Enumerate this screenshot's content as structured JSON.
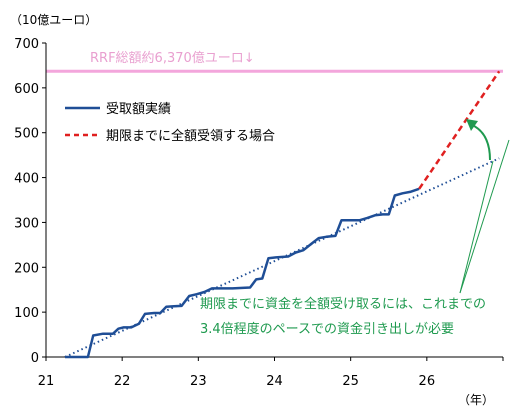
{
  "chart_data": {
    "type": "line",
    "y_unit_label": "（10億ユーロ）",
    "x_unit_label": "（年）",
    "xlim": [
      21,
      27
    ],
    "ylim": [
      0,
      700
    ],
    "x_ticks": [
      "21",
      "22",
      "23",
      "24",
      "25",
      "26"
    ],
    "y_ticks": [
      "0",
      "100",
      "200",
      "300",
      "400",
      "500",
      "600",
      "700"
    ],
    "rrf_total": {
      "label": "RRF総額約6,370億ユーロ↓",
      "value": 637,
      "color": "#f3a6dc"
    },
    "legend": [
      {
        "label": "受取額実績",
        "color": "#1f4e96",
        "style": "solid"
      },
      {
        "label": "期限までに全額受領する場合",
        "color": "#e02020",
        "style": "dashed"
      }
    ],
    "series": [
      {
        "name": "受取額実績",
        "color": "#1f4e96",
        "style": "solid",
        "points": [
          [
            21.25,
            0
          ],
          [
            21.55,
            0
          ],
          [
            21.62,
            48
          ],
          [
            21.75,
            52
          ],
          [
            21.88,
            52
          ],
          [
            21.95,
            63
          ],
          [
            22.02,
            66
          ],
          [
            22.12,
            66
          ],
          [
            22.22,
            74
          ],
          [
            22.3,
            96
          ],
          [
            22.42,
            98
          ],
          [
            22.5,
            98
          ],
          [
            22.58,
            112
          ],
          [
            22.68,
            113
          ],
          [
            22.78,
            114
          ],
          [
            22.88,
            136
          ],
          [
            22.98,
            140
          ],
          [
            23.08,
            145
          ],
          [
            23.18,
            153
          ],
          [
            23.3,
            153
          ],
          [
            23.45,
            153
          ],
          [
            23.58,
            154
          ],
          [
            23.68,
            155
          ],
          [
            23.76,
            173
          ],
          [
            23.84,
            175
          ],
          [
            23.92,
            220
          ],
          [
            24.02,
            222
          ],
          [
            24.18,
            224
          ],
          [
            24.28,
            233
          ],
          [
            24.38,
            238
          ],
          [
            24.48,
            252
          ],
          [
            24.58,
            265
          ],
          [
            24.68,
            268
          ],
          [
            24.8,
            270
          ],
          [
            24.88,
            305
          ],
          [
            24.98,
            305
          ],
          [
            25.12,
            305
          ],
          [
            25.22,
            310
          ],
          [
            25.32,
            316
          ],
          [
            25.42,
            318
          ],
          [
            25.5,
            318
          ],
          [
            25.58,
            360
          ],
          [
            25.68,
            365
          ],
          [
            25.78,
            368
          ],
          [
            25.9,
            375
          ]
        ]
      },
      {
        "name": "期限までに全額受領する場合",
        "color": "#e02020",
        "style": "dashed",
        "points": [
          [
            25.9,
            375
          ],
          [
            26.95,
            637
          ]
        ]
      },
      {
        "name": "trend",
        "color": "#1f4e96",
        "style": "dotted",
        "points": [
          [
            21.25,
            0
          ],
          [
            26.95,
            443
          ]
        ]
      }
    ],
    "annotation": {
      "line1": "期限までに資金を全額受け取るには、これまでの",
      "line2": "3.4倍程度のペースでの資金引き出しが必要",
      "color": "#1f9a4f"
    }
  }
}
